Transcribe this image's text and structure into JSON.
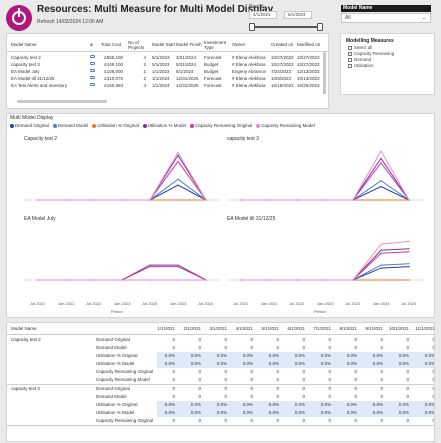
{
  "header": {
    "title": "Resources: Multi Measure for Multi Model Display",
    "refresh": "Refresh 14/03/2024 12:06 AM"
  },
  "period_slicer": {
    "label": "Period",
    "start": "4/1/2021",
    "end": "6/1/2024"
  },
  "model_slicer": {
    "label": "Model Name",
    "value": "All"
  },
  "models_table": {
    "columns": [
      "Model Name",
      "&",
      "Total Cost",
      "No of Projects",
      "Model Start",
      "Model Finish",
      "Investment Type",
      "Owner",
      "Created on",
      "Modified on"
    ],
    "rows": [
      [
        "Capacity test 2",
        "",
        "£555,100",
        "4",
        "5/1/2023",
        "3/31/2024",
        "Forecast",
        "# Elena Alekhina",
        "10/27/2023",
        "10/27/2023"
      ],
      [
        "capacity test 3",
        "",
        "£449,100",
        "2",
        "5/1/2023",
        "5/31/2024",
        "Budget",
        "# Elena Alekhina",
        "10/27/2023",
        "10/27/2023"
      ],
      [
        "EA Model July",
        "",
        "£106,000",
        "1",
        "1/1/2023",
        "5/1/2024",
        "Budget",
        "Evgeny Abramov",
        "7/24/2023",
        "12/13/2023"
      ],
      [
        "EA Model till 31/12/25",
        "",
        "£310,070",
        "2",
        "1/1/2024",
        "12/31/2025",
        "Forecast",
        "# Elena Alekhina",
        "10/9/2023",
        "10/13/2023"
      ],
      [
        "EA Test Alerts and inventory",
        "",
        "£150,693",
        "4",
        "1/1/2024",
        "12/31/2025",
        "Forecast",
        "# Elena Alekhina",
        "10/18/2023",
        "10/25/2023"
      ]
    ]
  },
  "measures_slicer": {
    "title": "Modelling Measures",
    "items": [
      "Select all",
      "Capacity Remaining",
      "Demand",
      "Utilisation"
    ]
  },
  "chart_data": [
    {
      "type": "line",
      "title": "Capacity test 2",
      "x": [
        "Jul 2021",
        "Jan 2022",
        "Jul 2022",
        "Jan 2023",
        "Jul 2023",
        "Jan 2024",
        "Jul 2024"
      ],
      "series": [
        {
          "name": "Demand Original",
          "color": "#1f3ea8",
          "values": [
            0,
            0,
            0,
            0,
            0,
            1,
            0
          ]
        },
        {
          "name": "Demand Model",
          "color": "#4a7ad8",
          "values": [
            0,
            0,
            0,
            0,
            0,
            1.4,
            0
          ]
        },
        {
          "name": "Utilisation % Original",
          "color": "#e8742c",
          "values": [
            0,
            0,
            0,
            0,
            0,
            0,
            0
          ]
        },
        {
          "name": "Utilisation % Model",
          "color": "#7a2fa8",
          "values": [
            0,
            0,
            0,
            0,
            0,
            3.0,
            0
          ]
        },
        {
          "name": "Capacity Remaining Original",
          "color": "#c83a9c",
          "values": [
            0,
            0,
            0,
            0,
            0,
            2.6,
            0
          ]
        },
        {
          "name": "Capacity Remaining Model",
          "color": "#e58fc8",
          "values": [
            0,
            0,
            0,
            0,
            0,
            3.2,
            0
          ]
        }
      ]
    },
    {
      "type": "line",
      "title": "capacity test 3",
      "x": [
        "Jul 2021",
        "Jan 2022",
        "Jul 2022",
        "Jan 2023",
        "Jul 2023",
        "Jan 2024",
        "Jul 2024"
      ],
      "series": [
        {
          "name": "Demand Original",
          "color": "#1f3ea8",
          "values": [
            0,
            0,
            0,
            0,
            0,
            0.9,
            0
          ]
        },
        {
          "name": "Demand Model",
          "color": "#4a7ad8",
          "values": [
            0,
            0,
            0,
            0,
            0,
            1.3,
            0
          ]
        },
        {
          "name": "Utilisation % Original",
          "color": "#e8742c",
          "values": [
            0,
            0,
            0,
            0,
            0,
            0,
            0
          ]
        },
        {
          "name": "Utilisation % Model",
          "color": "#7a2fa8",
          "values": [
            0,
            0,
            0,
            0,
            0,
            2.8,
            0
          ]
        },
        {
          "name": "Capacity Remaining Original",
          "color": "#c83a9c",
          "values": [
            0,
            0,
            0,
            0,
            0,
            2.5,
            0
          ]
        },
        {
          "name": "Capacity Remaining Model",
          "color": "#e58fc8",
          "values": [
            0,
            0,
            0,
            0,
            0,
            3.3,
            0
          ]
        }
      ]
    },
    {
      "type": "line",
      "title": "EA Model July",
      "x": [
        "Jul 2021",
        "Jan 2022",
        "Jul 2022",
        "Jan 2023",
        "Jul 2023",
        "Jan 2024",
        "Jul 2024"
      ],
      "series": [
        {
          "name": "Demand Original",
          "color": "#1f3ea8",
          "values": [
            0,
            0,
            0,
            0,
            0,
            0,
            0
          ]
        },
        {
          "name": "Demand Model",
          "color": "#4a7ad8",
          "values": [
            0,
            0,
            0,
            0,
            0,
            0,
            0
          ]
        },
        {
          "name": "Utilisation % Original",
          "color": "#e8742c",
          "values": [
            0,
            0,
            0,
            0,
            0,
            0,
            0
          ]
        },
        {
          "name": "Utilisation % Model",
          "color": "#7a2fa8",
          "values": [
            0,
            0,
            0,
            0,
            1,
            1,
            0
          ]
        },
        {
          "name": "Capacity Remaining Original",
          "color": "#c83a9c",
          "values": [
            0,
            0,
            0,
            0,
            0.9,
            0.9,
            0
          ]
        },
        {
          "name": "Capacity Remaining Model",
          "color": "#e58fc8",
          "values": [
            0,
            0,
            0,
            0,
            0,
            0,
            0
          ]
        }
      ]
    },
    {
      "type": "line",
      "title": "EA Model till 31/12/25",
      "x": [
        "Jul 2021",
        "Jan 2022",
        "Jul 2022",
        "Jan 2023",
        "Jul 2023",
        "Jan 2024",
        "Jul 2024"
      ],
      "series": [
        {
          "name": "Demand Original",
          "color": "#1f3ea8",
          "values": [
            0,
            0,
            0,
            0,
            0,
            0.8,
            0.9
          ]
        },
        {
          "name": "Demand Model",
          "color": "#4a7ad8",
          "values": [
            0,
            0,
            0,
            0,
            0,
            1.0,
            1.1
          ]
        },
        {
          "name": "Utilisation % Original",
          "color": "#e8742c",
          "values": [
            0,
            0,
            0,
            0,
            0,
            0,
            0
          ]
        },
        {
          "name": "Utilisation % Model",
          "color": "#7a2fa8",
          "values": [
            0,
            0,
            0,
            0,
            0,
            2.0,
            2.1
          ]
        },
        {
          "name": "Capacity Remaining Original",
          "color": "#c83a9c",
          "values": [
            0,
            0,
            0,
            0,
            0,
            1.8,
            1.9
          ]
        },
        {
          "name": "Capacity Remaining Model",
          "color": "#e58fc8",
          "values": [
            0,
            0,
            0,
            0,
            0,
            2.4,
            2.6
          ]
        }
      ]
    }
  ],
  "chart_panel": {
    "title": "Multi Model Display",
    "xlabel": "Period"
  },
  "matrix": {
    "columns": [
      "Model Name",
      "1/1/2021",
      "2/1/2021",
      "3/1/2021",
      "4/1/2021",
      "5/1/2021",
      "6/1/2021",
      "7/1/2021",
      "8/1/2021",
      "9/1/2021",
      "10/1/2021",
      "11/1/2021",
      "12/1/2021"
    ],
    "groups": [
      {
        "model": "Capacity test 2",
        "rows": [
          {
            "measure": "Demand Original",
            "values": [
              "0",
              "0",
              "0",
              "0",
              "0",
              "0",
              "0",
              "0",
              "0",
              "0",
              "0",
              "0"
            ]
          },
          {
            "measure": "Demand Model",
            "values": [
              "0",
              "0",
              "0",
              "0",
              "0",
              "0",
              "0",
              "0",
              "0",
              "0",
              "0",
              "0"
            ]
          },
          {
            "measure": "Utilisation % Original",
            "values": [
              "0.0%",
              "0.0%",
              "0.0%",
              "0.0%",
              "0.0%",
              "0.0%",
              "0.0%",
              "0.0%",
              "0.0%",
              "0.0%",
              "0.0%",
              "0.0%"
            ]
          },
          {
            "measure": "Utilisation % Model",
            "values": [
              "0.0%",
              "0.0%",
              "0.0%",
              "0.0%",
              "0.0%",
              "0.0%",
              "0.0%",
              "0.0%",
              "0.0%",
              "0.0%",
              "0.0%",
              "0.0%"
            ]
          },
          {
            "measure": "Capacity Remaining Original",
            "values": [
              "0",
              "0",
              "0",
              "0",
              "0",
              "0",
              "0",
              "0",
              "0",
              "0",
              "0",
              "0"
            ]
          },
          {
            "measure": "Capacity Remaining Model",
            "values": [
              "0",
              "0",
              "0",
              "0",
              "0",
              "0",
              "0",
              "0",
              "0",
              "0",
              "0",
              "0"
            ]
          }
        ]
      },
      {
        "model": "capacity test 3",
        "rows": [
          {
            "measure": "Demand Original",
            "values": [
              "0",
              "0",
              "0",
              "0",
              "0",
              "0",
              "0",
              "0",
              "0",
              "0",
              "0",
              "0"
            ]
          },
          {
            "measure": "Demand Model",
            "values": [
              "0",
              "0",
              "0",
              "0",
              "0",
              "0",
              "0",
              "0",
              "0",
              "0",
              "0",
              "0"
            ]
          },
          {
            "measure": "Utilisation % Original",
            "values": [
              "0.0%",
              "0.0%",
              "0.0%",
              "0.0%",
              "0.0%",
              "0.0%",
              "0.0%",
              "0.0%",
              "0.0%",
              "0.0%",
              "0.0%",
              "0.0%"
            ]
          },
          {
            "measure": "Utilisation % Model",
            "values": [
              "0.0%",
              "0.0%",
              "0.0%",
              "0.0%",
              "0.0%",
              "0.0%",
              "0.0%",
              "0.0%",
              "0.0%",
              "0.0%",
              "0.0%",
              "0.0%"
            ]
          },
          {
            "measure": "Capacity Remaining Original",
            "values": [
              "0",
              "0",
              "0",
              "0",
              "0",
              "0",
              "0",
              "0",
              "0",
              "0",
              "0",
              "0"
            ]
          }
        ]
      }
    ]
  },
  "colors": {
    "brand": "#b0177e",
    "highlight_row": "#deebf7"
  }
}
